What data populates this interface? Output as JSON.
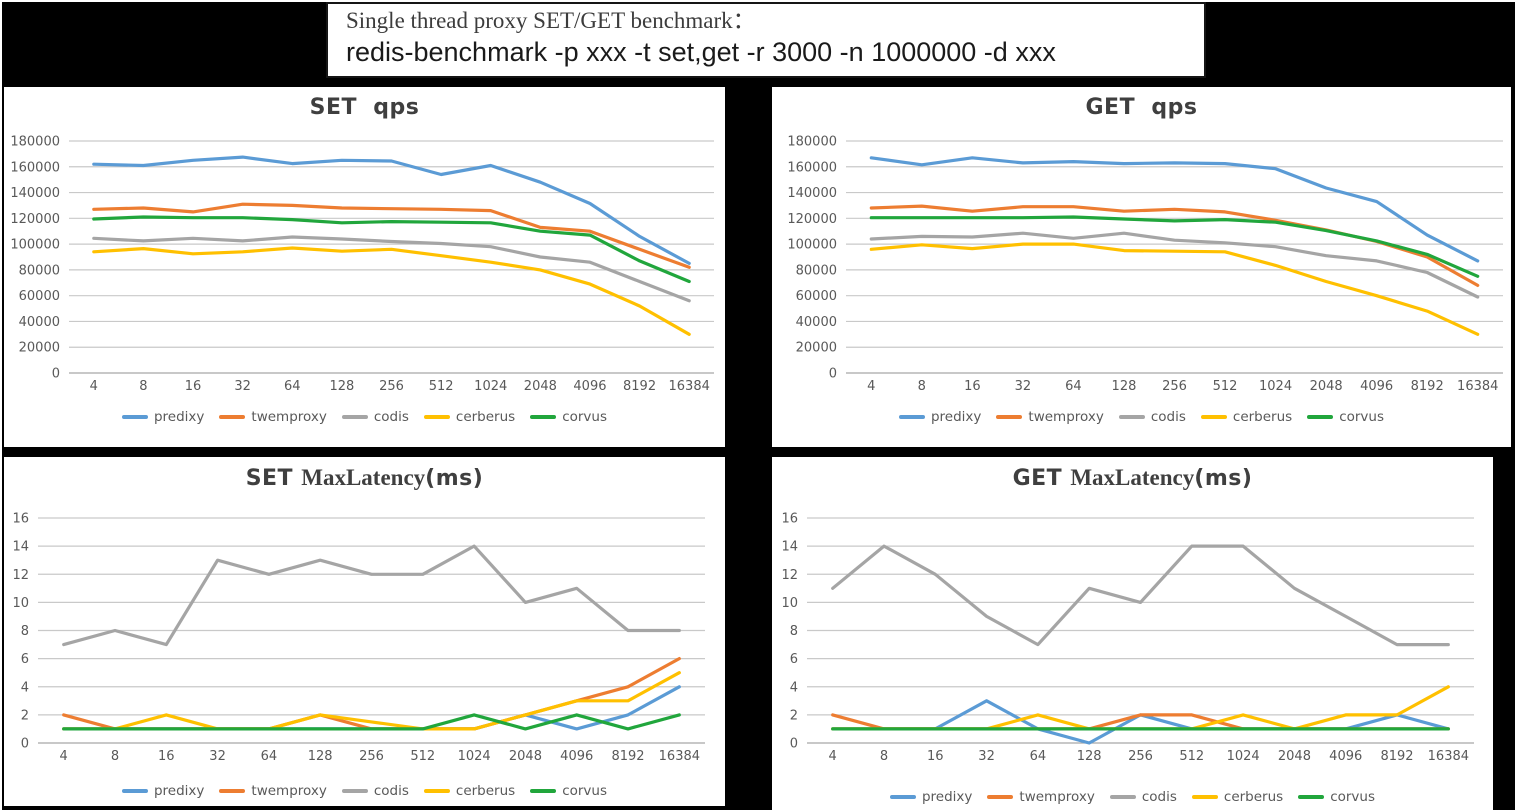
{
  "title_box": {
    "line1": "Single thread proxy SET/GET benchmark：",
    "line2": "redis-benchmark -p xxx -t set,get -r 3000 -n 1000000 -d xxx"
  },
  "colors": {
    "predixy": "#5B9BD5",
    "twemproxy": "#ED7D31",
    "codis": "#A5A5A5",
    "cerberus": "#FFC000",
    "corvus": "#21A63C",
    "grid": "#C9C9C9",
    "axis_line": "#A8A8A8",
    "tick_text": "#595959",
    "chart_title_text": "#3F3F3F"
  },
  "categories": [
    "4",
    "8",
    "16",
    "32",
    "64",
    "128",
    "256",
    "512",
    "1024",
    "2048",
    "4096",
    "8192",
    "16384"
  ],
  "legend_labels": [
    "predixy",
    "twemproxy",
    "codis",
    "cerberus",
    "corvus"
  ],
  "chart_data": [
    {
      "id": "set-qps",
      "type": "line",
      "title_segments": [
        {
          "text": "SET ",
          "serif": false
        },
        {
          "text": " qps",
          "serif": false
        }
      ],
      "xlabel": "",
      "ylabel": "",
      "ylim": [
        0,
        180000
      ],
      "ytick_step": 20000,
      "grid": true,
      "legend_position": "bottom",
      "series": [
        {
          "name": "predixy",
          "values": [
            162000,
            161000,
            165000,
            167500,
            162500,
            165000,
            164500,
            154000,
            161000,
            148000,
            131500,
            106000,
            85000
          ]
        },
        {
          "name": "twemproxy",
          "values": [
            127000,
            128000,
            125000,
            131000,
            130000,
            128000,
            127500,
            127000,
            126000,
            113000,
            110000,
            96000,
            82000
          ]
        },
        {
          "name": "codis",
          "values": [
            104500,
            102500,
            104500,
            102500,
            105500,
            104000,
            102000,
            100500,
            98000,
            90000,
            86000,
            71000,
            56000
          ]
        },
        {
          "name": "cerberus",
          "values": [
            94000,
            96500,
            92500,
            94000,
            97000,
            94500,
            96000,
            91000,
            86000,
            80000,
            69000,
            52000,
            30000
          ]
        },
        {
          "name": "corvus",
          "values": [
            119500,
            121000,
            120500,
            120500,
            119000,
            116500,
            117500,
            117000,
            116500,
            110000,
            107000,
            87000,
            71000
          ]
        }
      ]
    },
    {
      "id": "get-qps",
      "type": "line",
      "title_segments": [
        {
          "text": "GET ",
          "serif": false
        },
        {
          "text": " qps",
          "serif": false
        }
      ],
      "xlabel": "",
      "ylabel": "",
      "ylim": [
        0,
        180000
      ],
      "ytick_step": 20000,
      "grid": true,
      "legend_position": "bottom",
      "series": [
        {
          "name": "predixy",
          "values": [
            167000,
            161500,
            167000,
            163000,
            164000,
            162500,
            163000,
            162500,
            158500,
            143500,
            133000,
            107000,
            87000
          ]
        },
        {
          "name": "twemproxy",
          "values": [
            128000,
            129500,
            125500,
            129000,
            129000,
            125500,
            127000,
            125000,
            118500,
            111000,
            102000,
            90000,
            68000
          ]
        },
        {
          "name": "codis",
          "values": [
            104000,
            106000,
            105500,
            108500,
            104500,
            108500,
            103000,
            101000,
            98000,
            91000,
            87000,
            78000,
            59000
          ]
        },
        {
          "name": "cerberus",
          "values": [
            96000,
            99500,
            96500,
            100000,
            100000,
            95000,
            94500,
            94000,
            83500,
            71000,
            60000,
            48000,
            30000
          ]
        },
        {
          "name": "corvus",
          "values": [
            120500,
            120500,
            120500,
            120500,
            121000,
            119500,
            118000,
            119000,
            117000,
            110500,
            102500,
            92000,
            75000
          ]
        }
      ]
    },
    {
      "id": "set-lat",
      "type": "line",
      "title_segments": [
        {
          "text": "SET ",
          "serif": false
        },
        {
          "text": "MaxLatency",
          "serif": true
        },
        {
          "text": "(ms)",
          "serif": false
        }
      ],
      "xlabel": "",
      "ylabel": "",
      "ylim": [
        0,
        16
      ],
      "ytick_step": 2,
      "grid": true,
      "legend_position": "bottom",
      "series": [
        {
          "name": "predixy",
          "values": [
            1,
            1,
            1,
            1,
            1,
            1,
            1,
            1,
            1,
            2,
            1,
            2,
            4
          ]
        },
        {
          "name": "twemproxy",
          "values": [
            2,
            1,
            1,
            1,
            1,
            2,
            1,
            1,
            1,
            2,
            3,
            4,
            6
          ]
        },
        {
          "name": "codis",
          "values": [
            7,
            8,
            7,
            13,
            12,
            13,
            12,
            12,
            14,
            10,
            11,
            8,
            8
          ]
        },
        {
          "name": "cerberus",
          "values": [
            1,
            1,
            2,
            1,
            1,
            2,
            1.5,
            1,
            1,
            2,
            3,
            3,
            5
          ]
        },
        {
          "name": "corvus",
          "values": [
            1,
            1,
            1,
            1,
            1,
            1,
            1,
            1,
            2,
            1,
            2,
            1,
            2
          ]
        }
      ]
    },
    {
      "id": "get-lat",
      "type": "line",
      "title_segments": [
        {
          "text": "GET ",
          "serif": false
        },
        {
          "text": "MaxLatency",
          "serif": true
        },
        {
          "text": "(ms)",
          "serif": false
        }
      ],
      "xlabel": "",
      "ylabel": "",
      "ylim": [
        0,
        16
      ],
      "ytick_step": 2,
      "grid": true,
      "legend_position": "bottom",
      "series": [
        {
          "name": "predixy",
          "values": [
            1,
            1,
            1,
            3,
            1,
            0,
            2,
            1,
            1,
            1,
            1,
            2,
            1
          ]
        },
        {
          "name": "twemproxy",
          "values": [
            2,
            1,
            1,
            1,
            1,
            1,
            2,
            2,
            1,
            1,
            1,
            1,
            1
          ]
        },
        {
          "name": "codis",
          "values": [
            11,
            14,
            12,
            9,
            7,
            11,
            10,
            14,
            14,
            11,
            9,
            7,
            7
          ]
        },
        {
          "name": "cerberus",
          "values": [
            1,
            1,
            1,
            1,
            2,
            1,
            1,
            1,
            2,
            1,
            2,
            2,
            4
          ]
        },
        {
          "name": "corvus",
          "values": [
            1,
            1,
            1,
            1,
            1,
            1,
            1,
            1,
            1,
            1,
            1,
            1,
            1
          ]
        }
      ]
    }
  ]
}
